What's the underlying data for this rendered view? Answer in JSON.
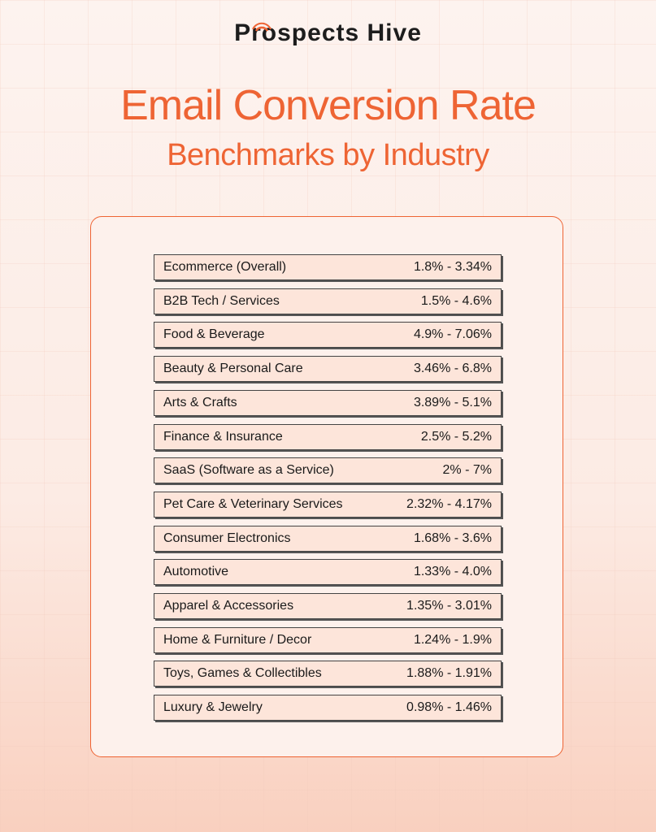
{
  "header": {
    "brand": "Prospects Hive",
    "title": "Email Conversion Rate",
    "subtitle": "Benchmarks by Industry"
  },
  "table": {
    "rows": [
      [
        "Ecommerce (Overall)",
        "1.8% - 3.34%"
      ],
      [
        "B2B Tech / Services",
        "1.5% - 4.6%"
      ],
      [
        "Food & Beverage",
        "4.9% - 7.06%"
      ],
      [
        "Beauty & Personal Care",
        "3.46% - 6.8%"
      ],
      [
        "Arts & Crafts",
        "3.89% - 5.1%"
      ],
      [
        "Finance & Insurance",
        "2.5% - 5.2%"
      ],
      [
        "SaaS (Software as a Service)",
        "2% - 7%"
      ],
      [
        "Pet Care & Veterinary Services",
        "2.32% - 4.17%"
      ],
      [
        "Consumer Electronics",
        "1.68% - 3.6%"
      ],
      [
        "Automotive",
        "1.33% - 4.0%"
      ],
      [
        "Apparel & Accessories",
        "1.35% - 3.01%"
      ],
      [
        "Home & Furniture / Decor",
        "1.24% - 1.9%"
      ],
      [
        "Toys, Games & Collectibles",
        "1.88% - 1.91%"
      ],
      [
        "Luxury & Jewelry",
        "0.98% - 1.46%"
      ]
    ]
  }
}
